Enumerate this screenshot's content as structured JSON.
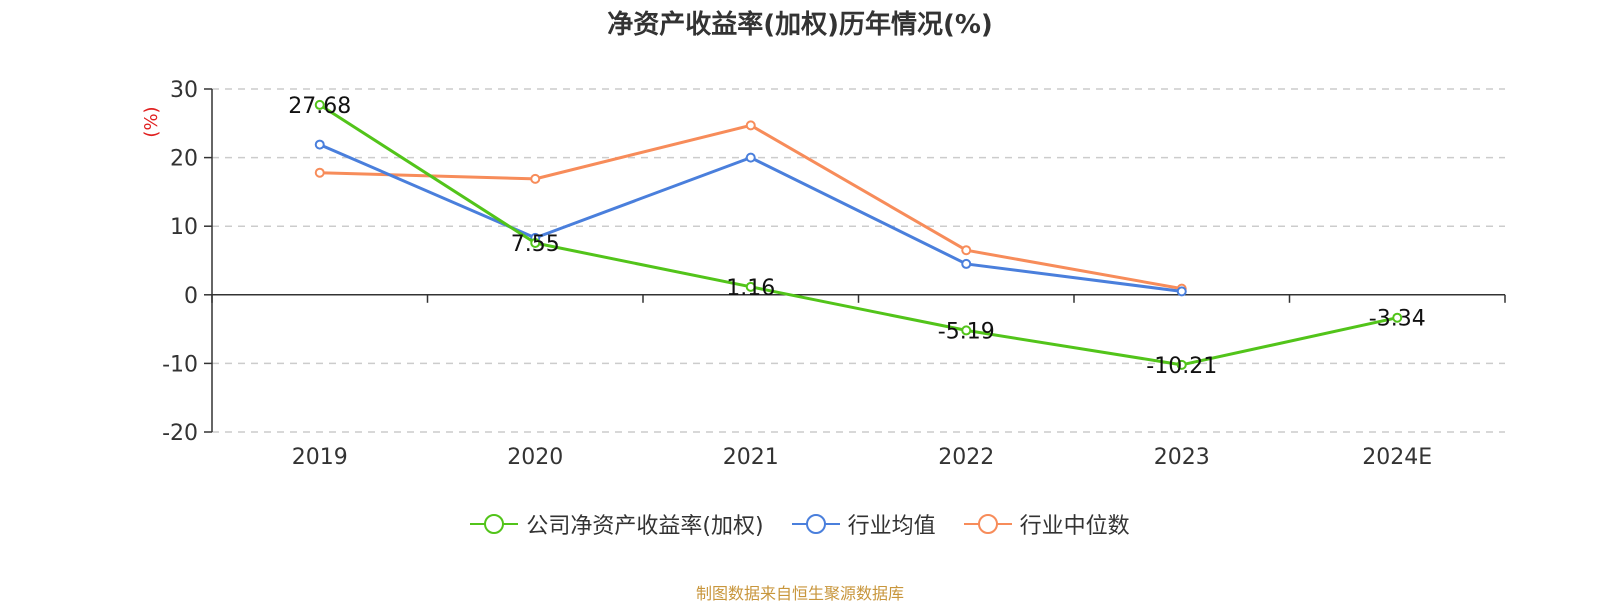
{
  "chart_data": {
    "type": "line",
    "title": "净资产收益率(加权)历年情况(%)",
    "ylabel": "(%)",
    "xlabel": "",
    "categories": [
      "2019",
      "2020",
      "2021",
      "2022",
      "2023",
      "2024E"
    ],
    "ylim": [
      -20,
      30
    ],
    "yticks": [
      30,
      20,
      10,
      0,
      -10,
      -20
    ],
    "grid": true,
    "legend_position": "bottom",
    "series": [
      {
        "name": "公司净资产收益率(加权)",
        "color": "#52c41a",
        "values": [
          27.68,
          7.55,
          1.16,
          -5.19,
          -10.21,
          -3.34
        ],
        "labels": [
          "27.68",
          "7.55",
          "1.16",
          "-5.19",
          "-10.21",
          "-3.34"
        ]
      },
      {
        "name": "行业均值",
        "color": "#4a7fdc",
        "values": [
          21.9,
          8.3,
          20.0,
          4.5,
          0.5,
          null
        ]
      },
      {
        "name": "行业中位数",
        "color": "#f78c5a",
        "values": [
          17.8,
          16.9,
          24.7,
          6.5,
          0.9,
          null
        ]
      }
    ]
  },
  "source": "制图数据来自恒生聚源数据库"
}
